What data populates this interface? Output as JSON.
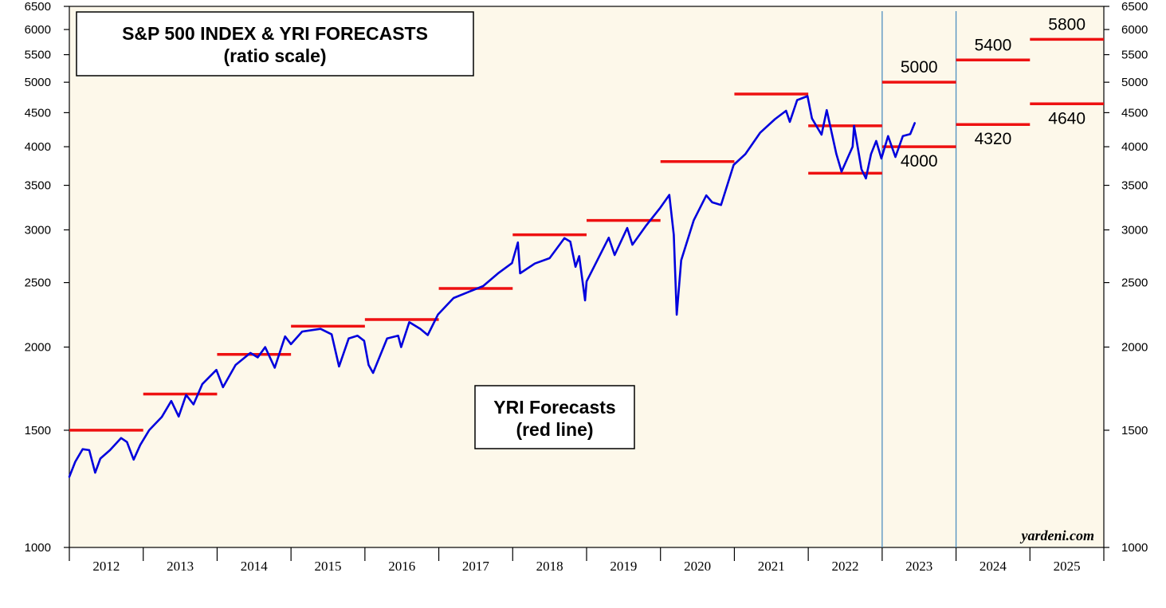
{
  "chart_data": {
    "type": "line",
    "title": "S&P 500 INDEX & YRI FORECASTS",
    "subtitle": "(ratio scale)",
    "scale": "log",
    "ylim": [
      1000,
      6500
    ],
    "y_ticks": [
      1000,
      1500,
      2000,
      2500,
      3000,
      3500,
      4000,
      4500,
      5000,
      5500,
      6000,
      6500
    ],
    "y_tick_labels": [
      "1000",
      "1500",
      "2000",
      "2500",
      "3000",
      "3500",
      "4000",
      "4500",
      "5000",
      "5500",
      "6000",
      "6500"
    ],
    "xlim": [
      2012.0,
      2026.0
    ],
    "x_tick_labels": [
      "2012",
      "2013",
      "2014",
      "2015",
      "2016",
      "2017",
      "2018",
      "2019",
      "2020",
      "2021",
      "2022",
      "2023",
      "2024",
      "2025"
    ],
    "series": [
      {
        "name": "S&P 500 Index",
        "color": "#0000dd",
        "points": [
          [
            2012.0,
            1277
          ],
          [
            2012.08,
            1345
          ],
          [
            2012.18,
            1405
          ],
          [
            2012.27,
            1400
          ],
          [
            2012.35,
            1295
          ],
          [
            2012.42,
            1360
          ],
          [
            2012.55,
            1400
          ],
          [
            2012.7,
            1460
          ],
          [
            2012.78,
            1440
          ],
          [
            2012.87,
            1355
          ],
          [
            2012.96,
            1426
          ],
          [
            2013.08,
            1500
          ],
          [
            2013.25,
            1570
          ],
          [
            2013.38,
            1660
          ],
          [
            2013.48,
            1573
          ],
          [
            2013.58,
            1695
          ],
          [
            2013.68,
            1640
          ],
          [
            2013.8,
            1760
          ],
          [
            2013.99,
            1848
          ],
          [
            2014.08,
            1741
          ],
          [
            2014.25,
            1880
          ],
          [
            2014.45,
            1960
          ],
          [
            2014.55,
            1930
          ],
          [
            2014.65,
            2000
          ],
          [
            2014.78,
            1862
          ],
          [
            2014.92,
            2075
          ],
          [
            2015.0,
            2020
          ],
          [
            2015.15,
            2110
          ],
          [
            2015.4,
            2130
          ],
          [
            2015.55,
            2090
          ],
          [
            2015.65,
            1870
          ],
          [
            2015.78,
            2060
          ],
          [
            2015.9,
            2080
          ],
          [
            2015.99,
            2044
          ],
          [
            2016.05,
            1880
          ],
          [
            2016.11,
            1829
          ],
          [
            2016.3,
            2060
          ],
          [
            2016.45,
            2080
          ],
          [
            2016.49,
            2000
          ],
          [
            2016.6,
            2180
          ],
          [
            2016.75,
            2130
          ],
          [
            2016.85,
            2085
          ],
          [
            2016.99,
            2239
          ],
          [
            2017.2,
            2370
          ],
          [
            2017.4,
            2420
          ],
          [
            2017.6,
            2470
          ],
          [
            2017.8,
            2580
          ],
          [
            2017.99,
            2674
          ],
          [
            2018.07,
            2872
          ],
          [
            2018.1,
            2581
          ],
          [
            2018.3,
            2670
          ],
          [
            2018.5,
            2720
          ],
          [
            2018.7,
            2915
          ],
          [
            2018.78,
            2880
          ],
          [
            2018.85,
            2640
          ],
          [
            2018.9,
            2740
          ],
          [
            2018.98,
            2351
          ],
          [
            2019.0,
            2510
          ],
          [
            2019.3,
            2920
          ],
          [
            2019.38,
            2750
          ],
          [
            2019.55,
            3020
          ],
          [
            2019.62,
            2850
          ],
          [
            2019.8,
            3040
          ],
          [
            2019.99,
            3231
          ],
          [
            2020.12,
            3386
          ],
          [
            2020.18,
            2950
          ],
          [
            2020.22,
            2237
          ],
          [
            2020.28,
            2700
          ],
          [
            2020.45,
            3100
          ],
          [
            2020.62,
            3380
          ],
          [
            2020.7,
            3300
          ],
          [
            2020.82,
            3270
          ],
          [
            2020.99,
            3756
          ],
          [
            2021.15,
            3900
          ],
          [
            2021.35,
            4200
          ],
          [
            2021.55,
            4400
          ],
          [
            2021.7,
            4530
          ],
          [
            2021.75,
            4360
          ],
          [
            2021.85,
            4700
          ],
          [
            2021.99,
            4766
          ],
          [
            2022.05,
            4410
          ],
          [
            2022.18,
            4170
          ],
          [
            2022.25,
            4540
          ],
          [
            2022.38,
            3900
          ],
          [
            2022.45,
            3670
          ],
          [
            2022.6,
            4000
          ],
          [
            2022.62,
            4300
          ],
          [
            2022.72,
            3700
          ],
          [
            2022.78,
            3585
          ],
          [
            2022.85,
            3900
          ],
          [
            2022.92,
            4080
          ],
          [
            2022.99,
            3840
          ],
          [
            2023.08,
            4150
          ],
          [
            2023.18,
            3860
          ],
          [
            2023.28,
            4150
          ],
          [
            2023.38,
            4180
          ],
          [
            2023.44,
            4340
          ]
        ]
      }
    ],
    "forecasts": [
      {
        "x0": 2012.0,
        "x1": 2013.0,
        "value": 1500
      },
      {
        "x0": 2013.0,
        "x1": 2014.0,
        "value": 1700
      },
      {
        "x0": 2014.0,
        "x1": 2015.0,
        "value": 1950
      },
      {
        "x0": 2015.0,
        "x1": 2016.0,
        "value": 2150
      },
      {
        "x0": 2016.0,
        "x1": 2017.0,
        "value": 2200
      },
      {
        "x0": 2017.0,
        "x1": 2018.0,
        "value": 2450
      },
      {
        "x0": 2018.0,
        "x1": 2019.0,
        "value": 2950
      },
      {
        "x0": 2019.0,
        "x1": 2020.0,
        "value": 3100
      },
      {
        "x0": 2020.0,
        "x1": 2021.0,
        "value": 3800
      },
      {
        "x0": 2021.0,
        "x1": 2022.0,
        "value": 4800
      },
      {
        "x0": 2022.0,
        "x1": 2023.0,
        "value": 4300
      },
      {
        "x0": 2022.0,
        "x1": 2023.0,
        "value": 3650
      },
      {
        "x0": 2023.0,
        "x1": 2024.0,
        "value": 5000,
        "label": "5000"
      },
      {
        "x0": 2023.0,
        "x1": 2024.0,
        "value": 4000,
        "label": "4000"
      },
      {
        "x0": 2024.0,
        "x1": 2025.0,
        "value": 5400,
        "label": "5400"
      },
      {
        "x0": 2024.0,
        "x1": 2025.0,
        "value": 4320,
        "label": "4320"
      },
      {
        "x0": 2025.0,
        "x1": 2026.0,
        "value": 5800,
        "label": "5800"
      },
      {
        "x0": 2025.0,
        "x1": 2026.0,
        "value": 4640,
        "label": "4640"
      }
    ],
    "vertical_markers": [
      2023.0,
      2024.0
    ],
    "annotations": {
      "forecast_box_line1": "YRI Forecasts",
      "forecast_box_line2": "(red line)",
      "credit": "yardeni.com"
    },
    "colors": {
      "plot_background": "#fdf8ea",
      "index_line": "#0000dd",
      "forecast_line": "#ee1111",
      "marker_line": "#4f8fc0"
    }
  }
}
